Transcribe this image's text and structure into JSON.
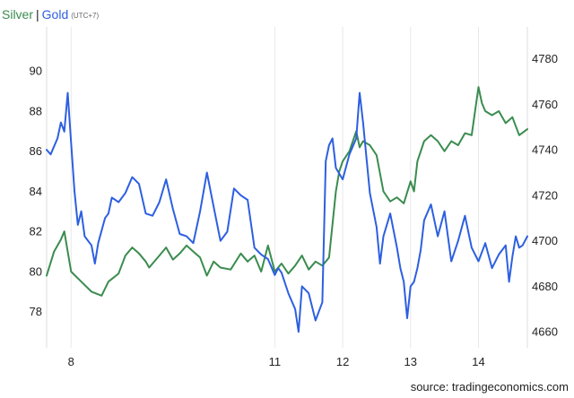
{
  "legend": {
    "silver_label": "Silver",
    "separator": "|",
    "gold_label": "Gold",
    "timezone": "(UTC+7)"
  },
  "source": "source: tradingeconomics.com",
  "chart_data": {
    "type": "line",
    "title": "",
    "xlabel": "",
    "x_ticks": [
      "8",
      "11",
      "12",
      "13",
      "14"
    ],
    "x_range": [
      7.64,
      14.72
    ],
    "y_left": {
      "label": "",
      "range": [
        76.2,
        92.2
      ],
      "ticks": [
        78,
        80,
        82,
        84,
        86,
        88,
        90
      ]
    },
    "y_right": {
      "label": "",
      "range": [
        4653,
        4794
      ],
      "ticks": [
        4660,
        4680,
        4700,
        4720,
        4740,
        4760,
        4780
      ]
    },
    "grid": "vertical",
    "legend_position": "top-left",
    "series": [
      {
        "name": "Silver",
        "axis": "left",
        "color": "#3a8c4f",
        "x": [
          7.64,
          7.75,
          7.85,
          7.9,
          8.0,
          8.15,
          8.3,
          8.45,
          8.55,
          8.7,
          8.8,
          8.9,
          9.0,
          9.1,
          9.15,
          9.3,
          9.4,
          9.5,
          9.6,
          9.7,
          9.8,
          9.9,
          10.0,
          10.1,
          10.2,
          10.35,
          10.5,
          10.6,
          10.7,
          10.8,
          10.9,
          11.0,
          11.1,
          11.2,
          11.3,
          11.4,
          11.5,
          11.6,
          11.7,
          11.8,
          11.9,
          11.95,
          12.0,
          12.1,
          12.2,
          12.25,
          12.3,
          12.4,
          12.5,
          12.6,
          12.7,
          12.8,
          12.9,
          13.0,
          13.05,
          13.1,
          13.2,
          13.3,
          13.4,
          13.5,
          13.6,
          13.7,
          13.8,
          13.9,
          13.95,
          14.0,
          14.05,
          14.1,
          14.2,
          14.3,
          14.4,
          14.5,
          14.6,
          14.72
        ],
        "values": [
          79.8,
          81.0,
          81.6,
          82.0,
          80.0,
          79.5,
          79.0,
          78.8,
          79.5,
          79.9,
          80.8,
          81.2,
          80.9,
          80.5,
          80.2,
          80.8,
          81.2,
          80.6,
          80.9,
          81.3,
          81.0,
          80.7,
          79.8,
          80.5,
          80.2,
          80.1,
          80.9,
          80.5,
          80.8,
          80.0,
          81.3,
          80.0,
          80.4,
          79.9,
          80.3,
          80.8,
          80.1,
          80.5,
          80.3,
          80.7,
          84.0,
          85.0,
          85.5,
          86.0,
          87.0,
          86.2,
          86.5,
          86.3,
          85.8,
          84.0,
          83.5,
          83.7,
          83.4,
          84.5,
          84.0,
          85.5,
          86.5,
          86.8,
          86.5,
          86.0,
          86.5,
          86.3,
          86.9,
          86.8,
          88.0,
          89.2,
          88.4,
          88.0,
          87.8,
          88.0,
          87.4,
          87.7,
          86.8,
          87.1
        ]
      },
      {
        "name": "Gold",
        "axis": "right",
        "color": "#2d5fe0",
        "x": [
          7.64,
          7.7,
          7.8,
          7.85,
          7.9,
          7.95,
          8.0,
          8.05,
          8.1,
          8.15,
          8.2,
          8.3,
          8.35,
          8.4,
          8.5,
          8.55,
          8.6,
          8.7,
          8.8,
          8.9,
          9.0,
          9.1,
          9.2,
          9.3,
          9.4,
          9.5,
          9.6,
          9.7,
          9.8,
          9.9,
          10.0,
          10.1,
          10.2,
          10.3,
          10.4,
          10.5,
          10.6,
          10.7,
          10.8,
          10.9,
          11.0,
          11.05,
          11.1,
          11.2,
          11.3,
          11.35,
          11.4,
          11.5,
          11.6,
          11.7,
          11.75,
          11.8,
          11.85,
          11.9,
          12.0,
          12.1,
          12.2,
          12.25,
          12.3,
          12.4,
          12.5,
          12.55,
          12.6,
          12.7,
          12.8,
          12.85,
          12.9,
          12.95,
          13.0,
          13.05,
          13.1,
          13.15,
          13.2,
          13.3,
          13.4,
          13.5,
          13.6,
          13.7,
          13.8,
          13.9,
          14.0,
          14.1,
          14.2,
          14.3,
          14.4,
          14.45,
          14.5,
          14.55,
          14.6,
          14.65,
          14.72
        ],
        "values": [
          4740,
          4738,
          4745,
          4752,
          4748,
          4765,
          4743,
          4722,
          4707,
          4713,
          4702,
          4698,
          4690,
          4699,
          4710,
          4712,
          4719,
          4717,
          4721,
          4728,
          4725,
          4712,
          4711,
          4717,
          4727,
          4714,
          4703,
          4702,
          4699,
          4713,
          4730,
          4715,
          4700,
          4704,
          4723,
          4720,
          4718,
          4697,
          4694,
          4692,
          4685,
          4688,
          4686,
          4677,
          4670,
          4660,
          4680,
          4677,
          4665,
          4673,
          4735,
          4742,
          4745,
          4732,
          4727,
          4738,
          4745,
          4765,
          4752,
          4721,
          4706,
          4690,
          4702,
          4712,
          4697,
          4688,
          4682,
          4666,
          4680,
          4682,
          4688,
          4696,
          4709,
          4716,
          4702,
          4713,
          4691,
          4700,
          4711,
          4697,
          4691,
          4699,
          4688,
          4694,
          4698,
          4682,
          4693,
          4702,
          4697,
          4698,
          4702
        ]
      }
    ]
  }
}
